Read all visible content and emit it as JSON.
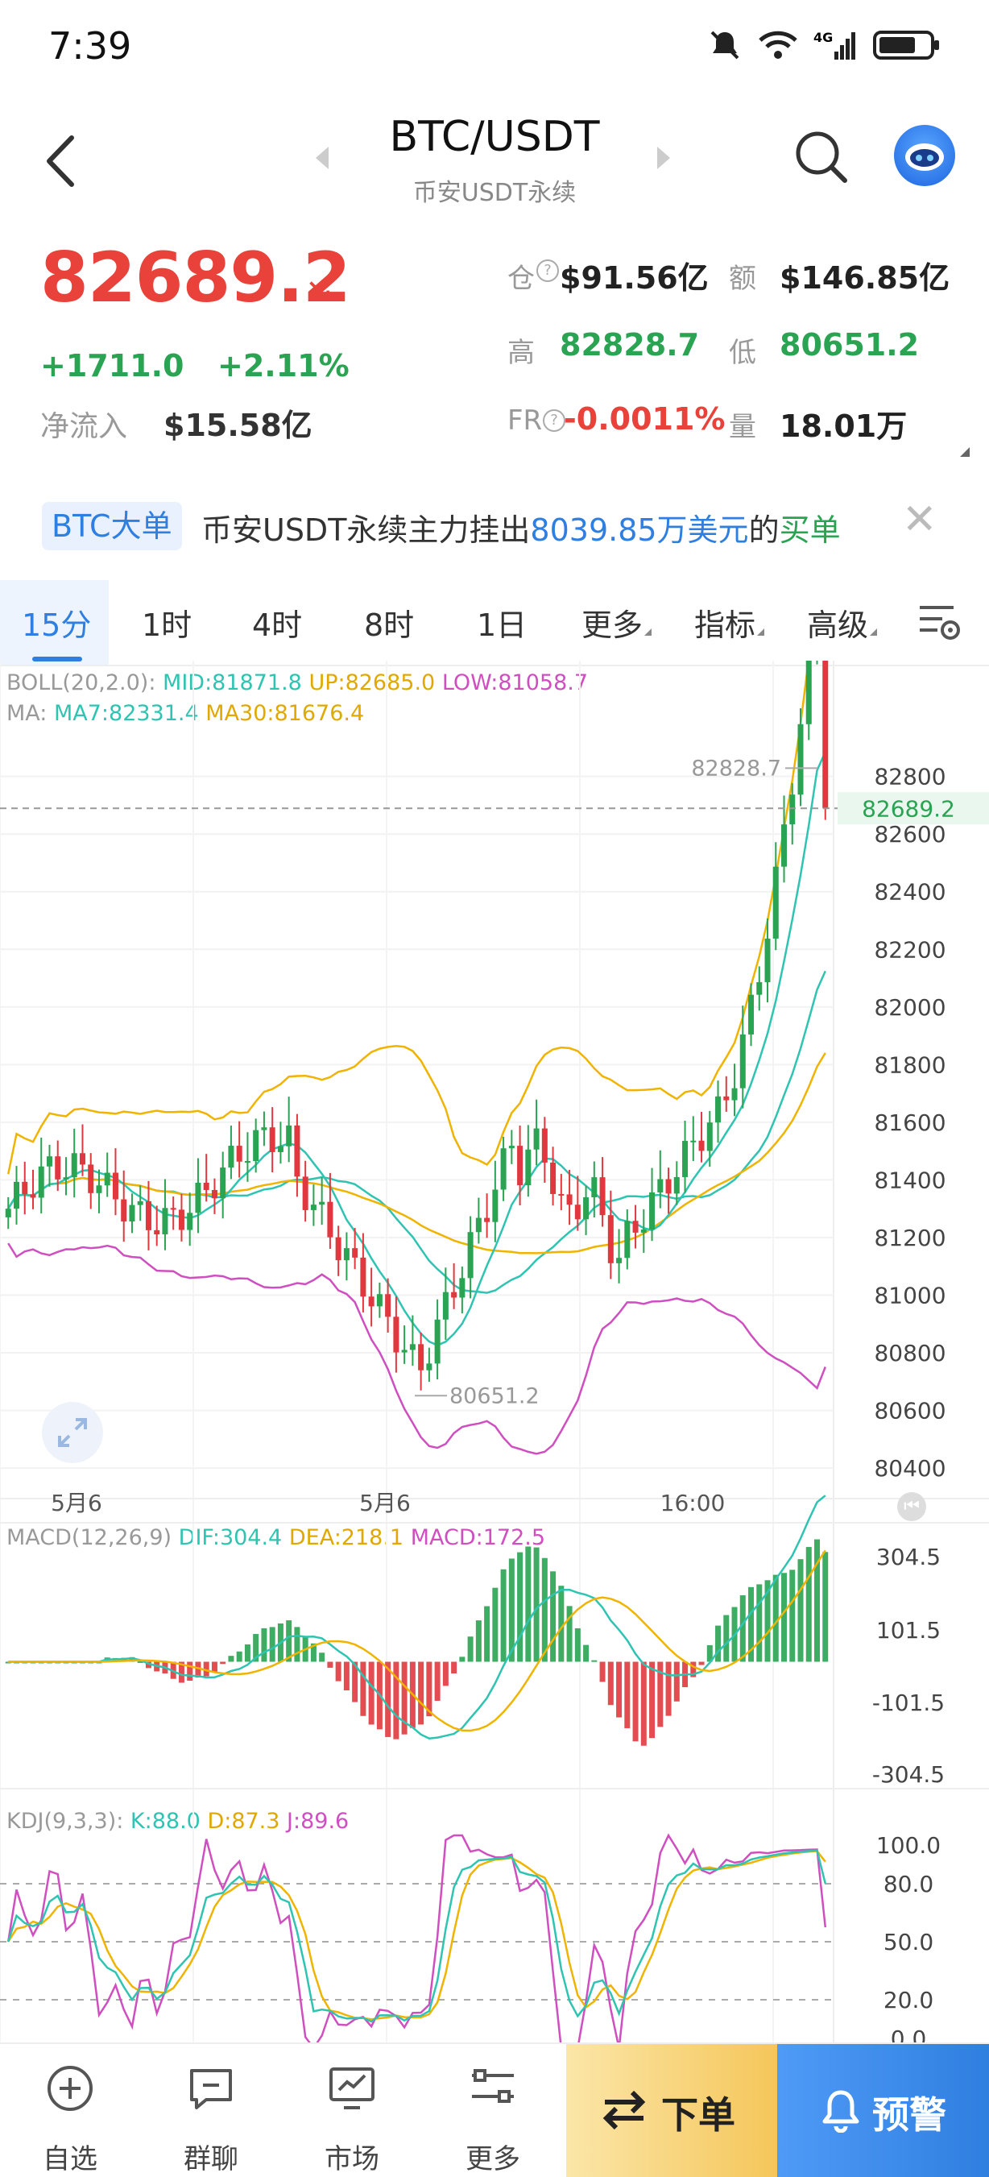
{
  "status": {
    "time": "7:39"
  },
  "header": {
    "title": "BTC/USDT",
    "subtitle": "币安USDT永续"
  },
  "ticker": {
    "price": "82689.2",
    "change": "+1711.0",
    "change_pct": "+2.11%",
    "netflow_label": "净流入",
    "netflow_value": "$15.58亿",
    "oi_label": "仓",
    "oi_value": "$91.56亿",
    "amount_label": "额",
    "amount_value": "$146.85亿",
    "high_label": "高",
    "high_value": "82828.7",
    "low_label": "低",
    "low_value": "80651.2",
    "fr_label": "FR",
    "fr_value": "-0.0011%",
    "volume_label": "量",
    "volume_value": "18.01万"
  },
  "banner": {
    "badge": "BTC大单",
    "text_prefix": "币安USDT永续主力挂出",
    "amount": "8039.85万美元",
    "text_mid": "的",
    "side": "买单"
  },
  "tabs": [
    {
      "label": "15分"
    },
    {
      "label": "1时"
    },
    {
      "label": "4时"
    },
    {
      "label": "8时"
    },
    {
      "label": "1日"
    },
    {
      "label": "更多"
    },
    {
      "label": "指标"
    },
    {
      "label": "高级"
    }
  ],
  "indicators": {
    "boll_label": "BOLL(20,2.0):",
    "boll_mid": "MID:81871.8",
    "boll_up": "UP:82685.0",
    "boll_low": "LOW:81058.7",
    "ma_label": "MA:",
    "ma7": "MA7:82331.4",
    "ma30": "MA30:81676.4",
    "macd_label": "MACD(12,26,9)",
    "macd_dif": "DIF:304.4",
    "macd_dea": "DEA:218.1",
    "macd_val": "MACD:172.5",
    "kdj_label": "KDJ(9,3,3):",
    "kdj_k": "K:88.0",
    "kdj_d": "D:87.3",
    "kdj_j": "J:89.6"
  },
  "chart_data": {
    "type": "candlestick",
    "y_ticks": [
      "82800",
      "82600",
      "82400",
      "82200",
      "82000",
      "81800",
      "81600",
      "81400",
      "81200",
      "81000",
      "80800",
      "80600",
      "80400"
    ],
    "ylim": [
      80350,
      82950
    ],
    "last_price": "82689.2",
    "high_marker": "82828.7",
    "low_marker": "80651.2",
    "x_labels": [
      "5月6",
      "5月6",
      "16:00"
    ],
    "macd_ticks": [
      "304.5",
      "101.5",
      "-101.5",
      "-304.5"
    ],
    "kdj_ticks": [
      "100.0",
      "80.0",
      "50.0",
      "20.0",
      "0.0"
    ],
    "colors": {
      "up": "#2aa352",
      "down": "#e0383e",
      "boll": "#f0b400",
      "mid": "#2fc4b2",
      "low": "#d04fc0"
    }
  },
  "nav": {
    "items": [
      {
        "label": "自选",
        "icon": "plus-circle-icon"
      },
      {
        "label": "群聊",
        "icon": "chat-icon"
      },
      {
        "label": "市场",
        "icon": "market-icon"
      },
      {
        "label": "更多",
        "icon": "more-icon"
      }
    ],
    "order": "下单",
    "alert": "预警"
  }
}
